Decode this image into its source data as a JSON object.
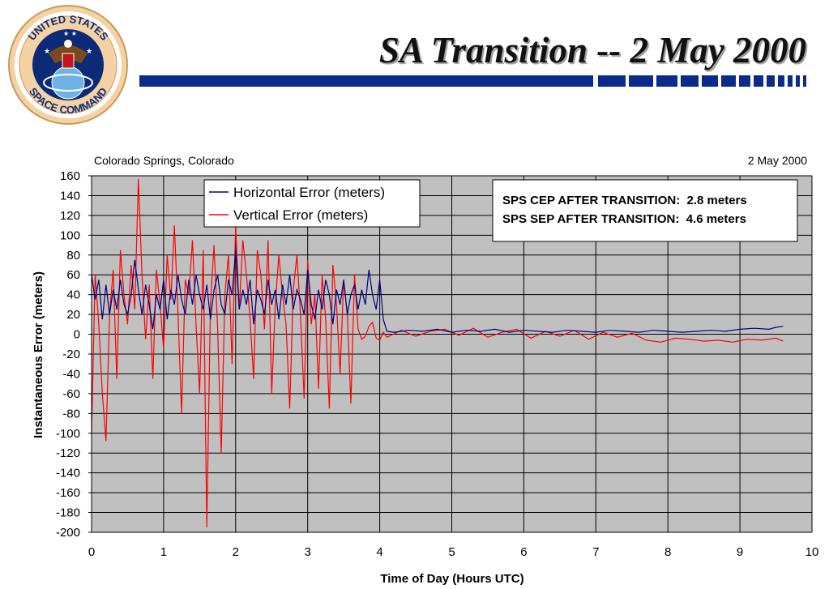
{
  "slide": {
    "title": "SA Transition -- 2 May 2000",
    "logo_text_top": "UNITED STATES",
    "logo_text_bottom": "SPACE COMMAND"
  },
  "colors": {
    "title_rule": "#0a2a8c",
    "plot_background": "#c0c0c0",
    "horizontal_series": "#000080",
    "vertical_series": "#ff0000"
  },
  "chart_data": {
    "type": "line",
    "title": "",
    "location": "Colorado Springs, Colorado",
    "date": "2 May 2000",
    "xlabel": "Time of Day (Hours UTC)",
    "ylabel": "Instantaneous Error (meters)",
    "xlim": [
      0,
      10
    ],
    "ylim": [
      -200,
      160
    ],
    "x_ticks": [
      0,
      1,
      2,
      3,
      4,
      5,
      6,
      7,
      8,
      9,
      10
    ],
    "y_ticks": [
      160,
      140,
      120,
      100,
      80,
      60,
      40,
      20,
      0,
      -20,
      -40,
      -60,
      -80,
      -100,
      -120,
      -140,
      -160,
      -180,
      -200
    ],
    "grid": true,
    "legend_position": "top-center",
    "annotations": [
      "SPS CEP AFTER TRANSITION:  2.8 meters",
      "SPS SEP AFTER TRANSITION:  4.6 meters"
    ],
    "series": [
      {
        "name": "Horizontal Error (meters)",
        "color": "#000080",
        "x": [
          0,
          0.05,
          0.1,
          0.15,
          0.2,
          0.25,
          0.3,
          0.35,
          0.4,
          0.45,
          0.5,
          0.55,
          0.6,
          0.65,
          0.7,
          0.75,
          0.8,
          0.85,
          0.9,
          0.95,
          1.0,
          1.05,
          1.1,
          1.15,
          1.2,
          1.25,
          1.3,
          1.35,
          1.4,
          1.45,
          1.5,
          1.55,
          1.6,
          1.65,
          1.7,
          1.75,
          1.8,
          1.85,
          1.9,
          1.95,
          2.0,
          2.05,
          2.1,
          2.15,
          2.2,
          2.25,
          2.3,
          2.35,
          2.4,
          2.45,
          2.5,
          2.55,
          2.6,
          2.65,
          2.7,
          2.75,
          2.8,
          2.85,
          2.9,
          2.95,
          3.0,
          3.05,
          3.1,
          3.15,
          3.2,
          3.25,
          3.3,
          3.35,
          3.4,
          3.45,
          3.5,
          3.55,
          3.6,
          3.65,
          3.7,
          3.75,
          3.8,
          3.85,
          3.9,
          3.95,
          4.0,
          4.05,
          4.1,
          4.2,
          4.4,
          4.6,
          4.8,
          5.0,
          5.2,
          5.4,
          5.6,
          5.8,
          6.0,
          6.2,
          6.4,
          6.6,
          6.8,
          7.0,
          7.2,
          7.4,
          7.6,
          7.8,
          8.0,
          8.2,
          8.4,
          8.6,
          8.8,
          9.0,
          9.2,
          9.4,
          9.5,
          9.6
        ],
        "y": [
          60,
          35,
          55,
          15,
          50,
          20,
          45,
          25,
          55,
          30,
          20,
          40,
          75,
          45,
          20,
          50,
          30,
          5,
          40,
          25,
          55,
          15,
          45,
          30,
          60,
          35,
          20,
          55,
          30,
          60,
          40,
          25,
          50,
          15,
          45,
          60,
          30,
          20,
          55,
          40,
          85,
          25,
          45,
          30,
          55,
          10,
          45,
          35,
          20,
          55,
          30,
          45,
          15,
          50,
          30,
          60,
          25,
          45,
          35,
          20,
          65,
          30,
          15,
          45,
          25,
          55,
          40,
          10,
          45,
          30,
          55,
          20,
          40,
          50,
          25,
          45,
          30,
          65,
          40,
          25,
          55,
          15,
          3,
          2,
          4,
          3,
          5,
          2,
          4,
          3,
          5,
          2,
          4,
          3,
          2,
          4,
          3,
          2,
          4,
          3,
          2,
          4,
          3,
          2,
          3,
          4,
          3,
          5,
          6,
          5,
          7,
          8
        ]
      },
      {
        "name": "Vertical Error (meters)",
        "color": "#ff0000",
        "x": [
          0,
          0.05,
          0.1,
          0.15,
          0.2,
          0.25,
          0.3,
          0.35,
          0.4,
          0.45,
          0.5,
          0.55,
          0.6,
          0.65,
          0.7,
          0.75,
          0.8,
          0.85,
          0.9,
          0.95,
          1.0,
          1.05,
          1.1,
          1.15,
          1.2,
          1.25,
          1.3,
          1.35,
          1.4,
          1.45,
          1.5,
          1.55,
          1.6,
          1.65,
          1.7,
          1.75,
          1.8,
          1.85,
          1.9,
          1.95,
          2.0,
          2.05,
          2.1,
          2.15,
          2.2,
          2.25,
          2.3,
          2.35,
          2.4,
          2.45,
          2.5,
          2.55,
          2.6,
          2.65,
          2.7,
          2.75,
          2.8,
          2.85,
          2.9,
          2.95,
          3.0,
          3.05,
          3.1,
          3.15,
          3.2,
          3.25,
          3.3,
          3.35,
          3.4,
          3.45,
          3.5,
          3.55,
          3.6,
          3.65,
          3.7,
          3.75,
          3.8,
          3.85,
          3.9,
          3.95,
          4.0,
          4.05,
          4.1,
          4.3,
          4.5,
          4.7,
          4.9,
          5.1,
          5.3,
          5.5,
          5.7,
          5.9,
          6.1,
          6.3,
          6.5,
          6.7,
          6.9,
          7.1,
          7.3,
          7.5,
          7.7,
          7.9,
          8.1,
          8.3,
          8.5,
          8.7,
          8.9,
          9.1,
          9.3,
          9.5,
          9.6
        ],
        "y": [
          -100,
          60,
          10,
          -60,
          -108,
          20,
          65,
          -45,
          85,
          40,
          10,
          70,
          25,
          157,
          60,
          -5,
          50,
          -45,
          65,
          30,
          -15,
          80,
          35,
          110,
          20,
          -80,
          55,
          40,
          95,
          10,
          -60,
          85,
          -195,
          30,
          90,
          5,
          -120,
          40,
          80,
          -30,
          110,
          25,
          95,
          60,
          15,
          -45,
          85,
          60,
          5,
          95,
          -60,
          30,
          80,
          40,
          10,
          -75,
          45,
          80,
          20,
          -65,
          75,
          10,
          40,
          -55,
          60,
          15,
          -75,
          70,
          30,
          -40,
          55,
          20,
          -70,
          60,
          5,
          -5,
          -2,
          8,
          12,
          -4,
          -6,
          2,
          -3,
          4,
          -2,
          3,
          5,
          -1,
          6,
          -3,
          2,
          5,
          -4,
          3,
          -2,
          4,
          -5,
          2,
          -3,
          1,
          -6,
          -8,
          -4,
          -5,
          -7,
          -6,
          -8,
          -5,
          -6,
          -4,
          -7
        ]
      }
    ]
  }
}
